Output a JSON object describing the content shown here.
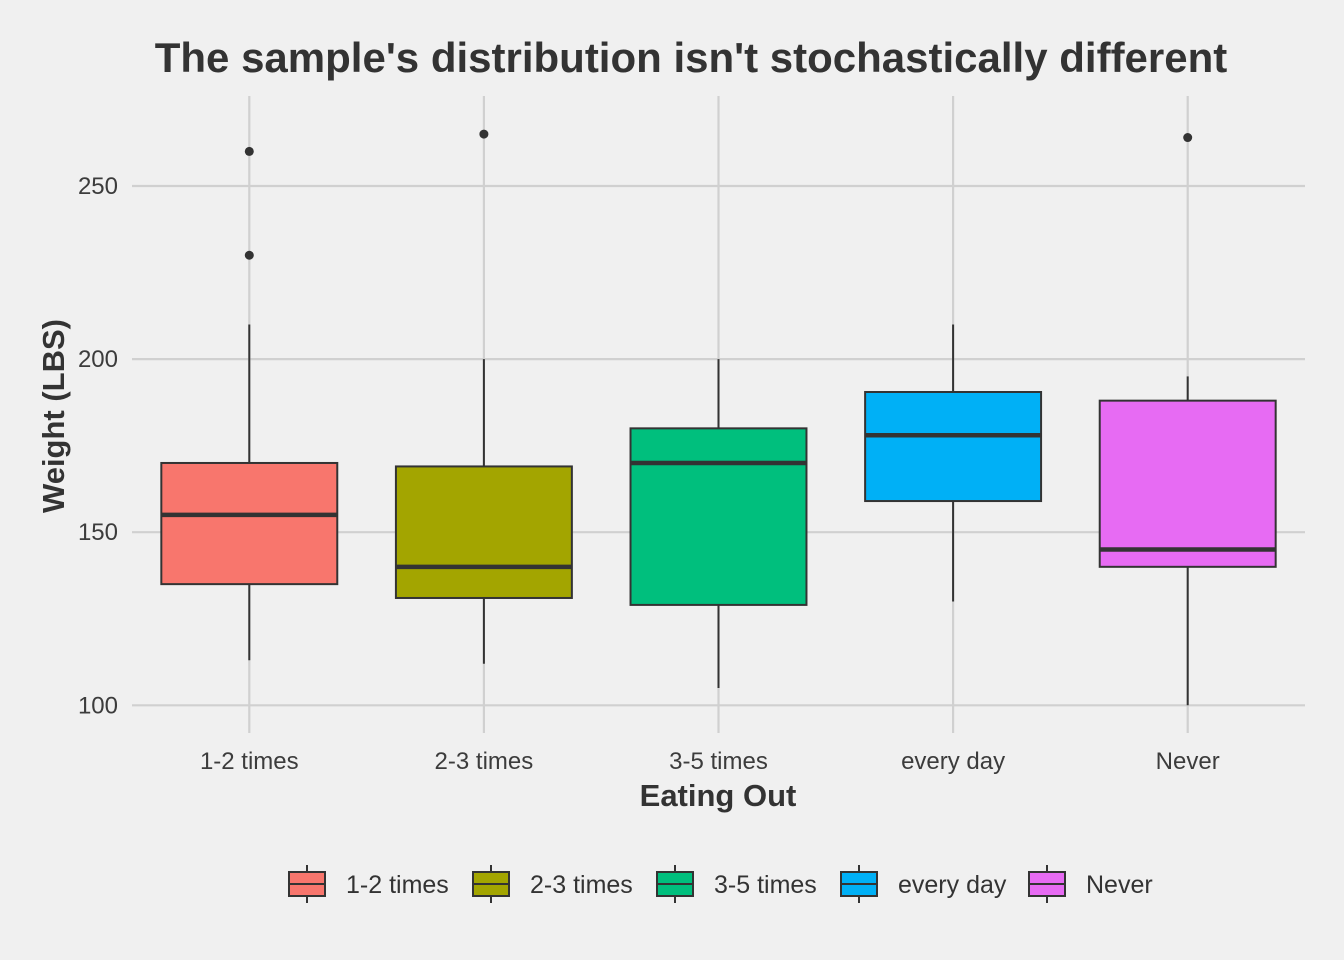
{
  "chart_data": {
    "type": "boxplot",
    "title": "The sample's distribution isn't stochastically different",
    "xlabel": "Eating Out",
    "ylabel": "Weight (LBS)",
    "ylim": [
      92,
      276
    ],
    "yticks": [
      100,
      150,
      200,
      250
    ],
    "grid": true,
    "legend_position": "bottom",
    "categories": [
      "1-2 times",
      "2-3 times",
      "3-5 times",
      "every day",
      "Never"
    ],
    "series": [
      {
        "name": "1-2 times",
        "color": "#F8766D",
        "whisker_low": 113,
        "q1": 135,
        "median": 155,
        "q3": 170,
        "whisker_high": 210,
        "outliers": [
          230,
          260
        ]
      },
      {
        "name": "2-3 times",
        "color": "#A3A500",
        "whisker_low": 112,
        "q1": 131,
        "median": 140,
        "q3": 169,
        "whisker_high": 200,
        "outliers": [
          265
        ]
      },
      {
        "name": "3-5 times",
        "color": "#00BF7D",
        "whisker_low": 105,
        "q1": 129,
        "median": 170,
        "q3": 180,
        "whisker_high": 200,
        "outliers": []
      },
      {
        "name": "every day",
        "color": "#00B0F6",
        "whisker_low": 130,
        "q1": 159,
        "median": 178,
        "q3": 190.5,
        "whisker_high": 210,
        "outliers": []
      },
      {
        "name": "Never",
        "color": "#E76BF3",
        "whisker_low": 100,
        "q1": 140,
        "median": 145,
        "q3": 188,
        "whisker_high": 195,
        "outliers": [
          264
        ]
      }
    ]
  }
}
